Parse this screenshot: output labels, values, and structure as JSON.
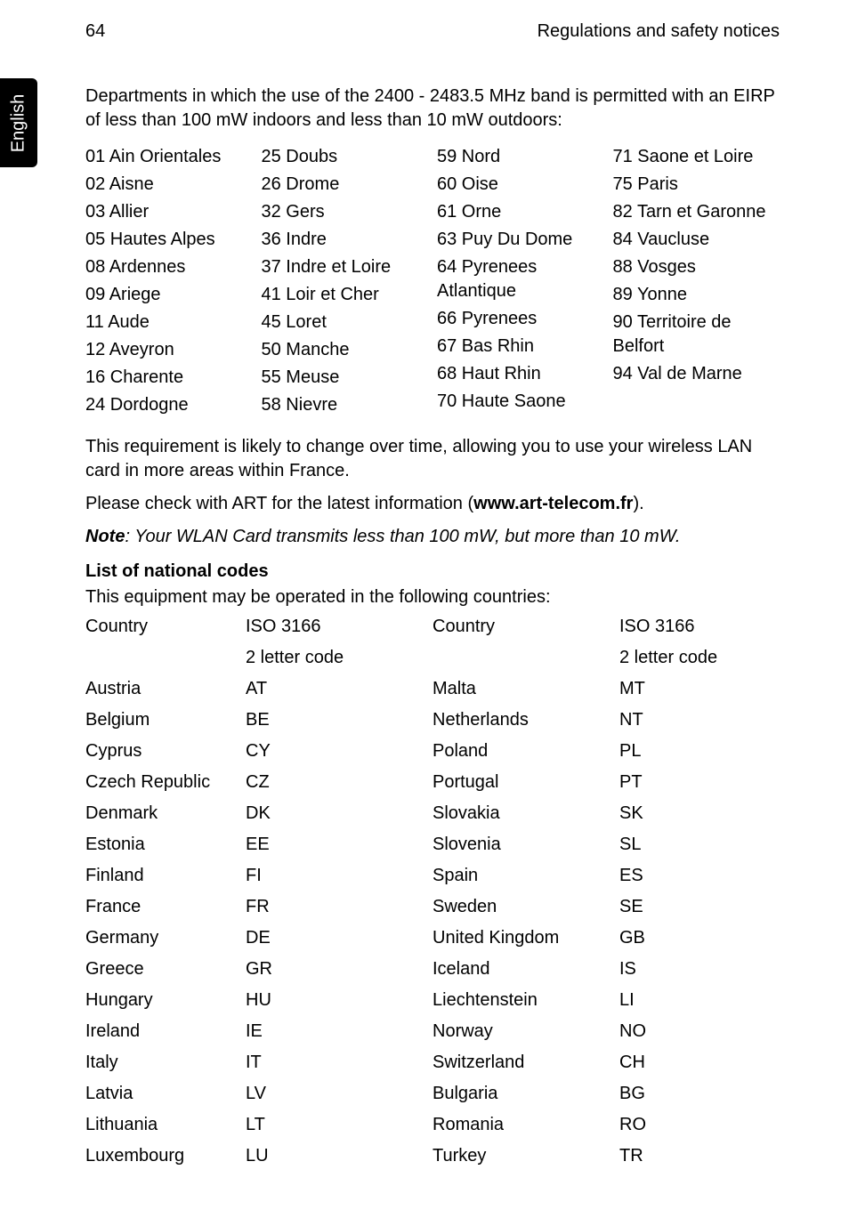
{
  "header": {
    "page_number": "64",
    "title": "Regulations and safety notices"
  },
  "side_tab": {
    "label": "English"
  },
  "intro_paragraph": "Departments in which the use of the 2400 - 2483.5 MHz band is permitted with an EIRP of less than 100 mW indoors and less than 10 mW outdoors:",
  "departments": {
    "col1": [
      "01 Ain Orientales",
      "02 Aisne",
      "03 Allier",
      "05 Hautes Alpes",
      "08 Ardennes",
      "09 Ariege",
      "11 Aude",
      "12 Aveyron",
      "16 Charente",
      "24 Dordogne"
    ],
    "col2": [
      "25 Doubs",
      "26 Drome",
      "32 Gers",
      "36 Indre",
      "37 Indre et Loire",
      "41 Loir et Cher",
      "45 Loret",
      "50 Manche",
      "55 Meuse",
      "58 Nievre"
    ],
    "col3": [
      "59 Nord",
      "60 Oise",
      "61 Orne",
      "63 Puy Du Dome",
      "64 Pyrenees Atlantique",
      "66 Pyrenees",
      "67 Bas Rhin",
      "68 Haut Rhin",
      "70 Haute Saone"
    ],
    "col4": [
      "71 Saone et Loire",
      "75 Paris",
      "82 Tarn et Garonne",
      "84 Vaucluse",
      "88 Vosges",
      "89 Yonne",
      "90 Territoire de Belfort",
      "94 Val de Marne"
    ]
  },
  "requirement_text": "This requirement is likely to change over time, allowing you to use your wireless LAN card in more areas within France.",
  "check_prefix": "Please check with ART for the latest information (",
  "check_link": "www.art-telecom.fr",
  "check_suffix": ").",
  "note_prefix": "Note",
  "note_body": ": Your WLAN Card transmits less than 100 mW, but more than 10 mW.",
  "codes_heading": "List of national codes",
  "codes_intro": "This equipment may be operated in the following countries:",
  "table_headers": {
    "country": "Country",
    "iso": "ISO 3166",
    "subhead": "2 letter code"
  },
  "countries_left": [
    {
      "c": "Austria",
      "code": "AT"
    },
    {
      "c": "Belgium",
      "code": "BE"
    },
    {
      "c": "Cyprus",
      "code": "CY"
    },
    {
      "c": "Czech Republic",
      "code": "CZ"
    },
    {
      "c": "Denmark",
      "code": "DK"
    },
    {
      "c": "Estonia",
      "code": "EE"
    },
    {
      "c": "Finland",
      "code": "FI"
    },
    {
      "c": "France",
      "code": "FR"
    },
    {
      "c": "Germany",
      "code": "DE"
    },
    {
      "c": "Greece",
      "code": "GR"
    },
    {
      "c": "Hungary",
      "code": "HU"
    },
    {
      "c": "Ireland",
      "code": "IE"
    },
    {
      "c": "Italy",
      "code": "IT"
    },
    {
      "c": "Latvia",
      "code": "LV"
    },
    {
      "c": "Lithuania",
      "code": "LT"
    },
    {
      "c": "Luxembourg",
      "code": "LU"
    }
  ],
  "countries_right": [
    {
      "c": "Malta",
      "code": "MT"
    },
    {
      "c": "Netherlands",
      "code": "NT"
    },
    {
      "c": "Poland",
      "code": "PL"
    },
    {
      "c": "Portugal",
      "code": "PT"
    },
    {
      "c": "Slovakia",
      "code": "SK"
    },
    {
      "c": "Slovenia",
      "code": "SL"
    },
    {
      "c": "Spain",
      "code": "ES"
    },
    {
      "c": "Sweden",
      "code": "SE"
    },
    {
      "c": "United Kingdom",
      "code": "GB"
    },
    {
      "c": "Iceland",
      "code": "IS"
    },
    {
      "c": "Liechtenstein",
      "code": "LI"
    },
    {
      "c": "Norway",
      "code": "NO"
    },
    {
      "c": "Switzerland",
      "code": "CH"
    },
    {
      "c": "Bulgaria",
      "code": "BG"
    },
    {
      "c": "Romania",
      "code": "RO"
    },
    {
      "c": "Turkey",
      "code": "TR"
    }
  ]
}
